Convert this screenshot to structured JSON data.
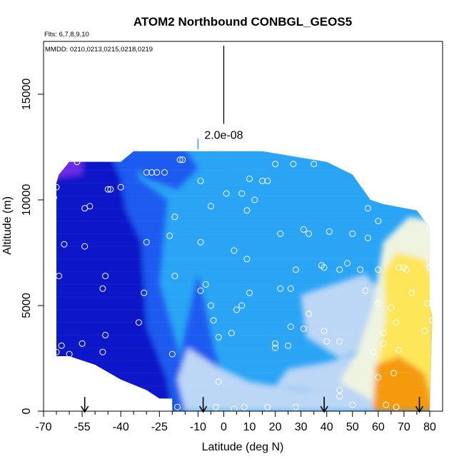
{
  "chart_data": {
    "type": "heatmap",
    "title": "ATOM2 Northbound CONBGL_GEOS5",
    "annotations": {
      "flights": "Flts: 6,7,8,9,10",
      "dates": "MMDD: 0210,0213,0215,0218,0219"
    },
    "xlabel": "Latitude (deg N)",
    "ylabel": "Altitude (m)",
    "xlim": [
      -70,
      85
    ],
    "ylim": [
      0,
      17500
    ],
    "xticks": [
      -70,
      -55,
      -40,
      -25,
      -10,
      0,
      10,
      20,
      30,
      40,
      50,
      60,
      70,
      80
    ],
    "xtick_labels": [
      "-70",
      "-55",
      "-40",
      "-25",
      "-10",
      "0",
      "10",
      "20",
      "30",
      "40",
      "50",
      "60",
      "70",
      "80"
    ],
    "xtick_minor": [
      -65,
      -60,
      -50,
      -45,
      -35,
      -30,
      -20,
      -15,
      -5,
      5,
      15,
      25,
      35,
      45,
      55,
      65,
      75
    ],
    "yticks": [
      0,
      5000,
      10000,
      15000
    ],
    "ytick_labels": [
      "0",
      "5000",
      "10000",
      "15000"
    ],
    "scale_bar": {
      "value": 2e-08,
      "label": "2.0e-08",
      "x": 0,
      "y_range": [
        13600,
        17300
      ]
    },
    "field_extent": {
      "x": [
        -65,
        80
      ],
      "y": [
        0,
        12200
      ]
    },
    "colors": {
      "purple": "#6a2be8",
      "dark_blue": "#0a14c8",
      "mid_blue": "#1f5af0",
      "sky_blue": "#2aa4f5",
      "light_blue": "#bcd6f5",
      "pale": "#eef4e0",
      "yellow": "#fde658",
      "orange": "#f59a0a"
    },
    "profile_arrows_lat": [
      -54,
      -8,
      39,
      76
    ],
    "observation_points": [
      [
        -57,
        11800
      ],
      [
        -65,
        10600
      ],
      [
        -66,
        10100
      ],
      [
        -62,
        7900
      ],
      [
        -64,
        6400
      ],
      [
        -54,
        9600
      ],
      [
        -52,
        9700
      ],
      [
        -54,
        7800
      ],
      [
        -45,
        10500
      ],
      [
        -44,
        10500
      ],
      [
        -40,
        10600
      ],
      [
        -46,
        6400
      ],
      [
        -47,
        5800
      ],
      [
        -46,
        3600
      ],
      [
        -47,
        2800
      ],
      [
        -55,
        3200
      ],
      [
        -65,
        2800
      ],
      [
        -63,
        3100
      ],
      [
        -60,
        2700
      ],
      [
        -30,
        11300
      ],
      [
        -28,
        11300
      ],
      [
        -26,
        11300
      ],
      [
        -23,
        11300
      ],
      [
        -17,
        11900
      ],
      [
        -16,
        11900
      ],
      [
        -19,
        9200
      ],
      [
        -21,
        8300
      ],
      [
        -30,
        8000
      ],
      [
        -31,
        5600
      ],
      [
        -19,
        6400
      ],
      [
        -33,
        4200
      ],
      [
        -20,
        2700
      ],
      [
        -18,
        200
      ],
      [
        -9,
        10900
      ],
      [
        -5,
        9700
      ],
      [
        -9,
        8000
      ],
      [
        -7,
        6000
      ],
      [
        -9,
        5700
      ],
      [
        -5,
        5000
      ],
      [
        -4,
        4300
      ],
      [
        -2,
        3500
      ],
      [
        1,
        10300
      ],
      [
        4,
        7600
      ],
      [
        7,
        10300
      ],
      [
        10,
        11000
      ],
      [
        12,
        10000
      ],
      [
        9,
        9500
      ],
      [
        9,
        7200
      ],
      [
        7,
        5000
      ],
      [
        5,
        4800
      ],
      [
        3,
        3700
      ],
      [
        10,
        5600
      ],
      [
        15,
        10900
      ],
      [
        17,
        10900
      ],
      [
        20,
        11700
      ],
      [
        22,
        8400
      ],
      [
        27,
        11700
      ],
      [
        31,
        8600
      ],
      [
        35,
        11700
      ],
      [
        33,
        8400
      ],
      [
        28,
        6700
      ],
      [
        26,
        4000
      ],
      [
        31,
        3900
      ],
      [
        25,
        3100
      ],
      [
        20,
        3200
      ],
      [
        20,
        3000
      ],
      [
        22,
        5800
      ],
      [
        26,
        5800
      ],
      [
        33,
        4600
      ],
      [
        38,
        6900
      ],
      [
        39,
        6800
      ],
      [
        39,
        3800
      ],
      [
        40,
        3300
      ],
      [
        41,
        8500
      ],
      [
        50,
        8400
      ],
      [
        56,
        8200
      ],
      [
        45,
        6700
      ],
      [
        48,
        7000
      ],
      [
        45,
        3300
      ],
      [
        53,
        6700
      ],
      [
        60,
        6700
      ],
      [
        55,
        5700
      ],
      [
        58,
        2800
      ],
      [
        60,
        1600
      ],
      [
        62,
        3700
      ],
      [
        65,
        4900
      ],
      [
        67,
        4200
      ],
      [
        68,
        6800
      ],
      [
        70,
        6800
      ],
      [
        71,
        6700
      ],
      [
        73,
        5600
      ],
      [
        76,
        9600
      ],
      [
        80,
        8600
      ],
      [
        80,
        6800
      ],
      [
        79,
        5100
      ],
      [
        78,
        3800
      ],
      [
        81,
        4300
      ],
      [
        60,
        5100
      ],
      [
        62,
        3200
      ],
      [
        68,
        2900
      ],
      [
        66,
        1800
      ],
      [
        63,
        300
      ],
      [
        67,
        200
      ],
      [
        50,
        300
      ],
      [
        60,
        9000
      ],
      [
        56,
        9600
      ],
      [
        45,
        700
      ],
      [
        -2,
        1400
      ],
      [
        -3,
        200
      ],
      [
        4,
        100
      ],
      [
        8,
        200
      ],
      [
        17,
        200
      ],
      [
        28,
        200
      ],
      [
        45,
        1000
      ]
    ]
  }
}
